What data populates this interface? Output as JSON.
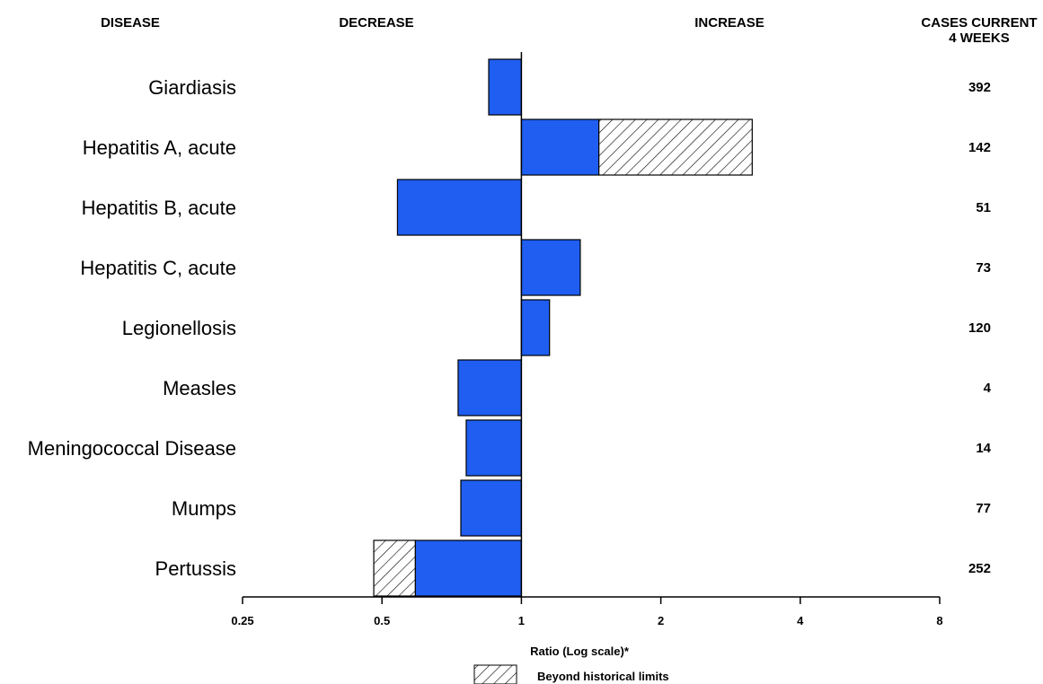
{
  "headers": {
    "disease": "DISEASE",
    "decrease": "DECREASE",
    "increase": "INCREASE",
    "cases_line1": "CASES CURRENT",
    "cases_line2": "4 WEEKS"
  },
  "legend": {
    "label": "Beyond historical limits"
  },
  "colors": {
    "bar": "#1f5ef0",
    "outline": "#000000"
  },
  "chart_data": {
    "type": "bar",
    "orientation": "horizontal",
    "xlabel": "Ratio (Log scale)*",
    "xscale": "log2",
    "xlim": [
      0.25,
      8
    ],
    "ticks": [
      "0.25",
      "0.5",
      "1",
      "2",
      "4",
      "8"
    ],
    "baseline": 1,
    "categories": [
      "Giardiasis",
      "Hepatitis A, acute",
      "Hepatitis B, acute",
      "Hepatitis C, acute",
      "Legionellosis",
      "Measles",
      "Meningococcal Disease",
      "Mumps",
      "Pertussis"
    ],
    "ratios": [
      0.85,
      3.15,
      0.54,
      1.34,
      1.15,
      0.73,
      0.76,
      0.74,
      0.48
    ],
    "within_limit": [
      0.85,
      1.47,
      0.54,
      1.34,
      1.15,
      0.73,
      0.76,
      0.74,
      0.59
    ],
    "cases_current_4_weeks": [
      "392",
      "142",
      "51",
      "73",
      "120",
      "4",
      "14",
      "77",
      "252"
    ]
  }
}
